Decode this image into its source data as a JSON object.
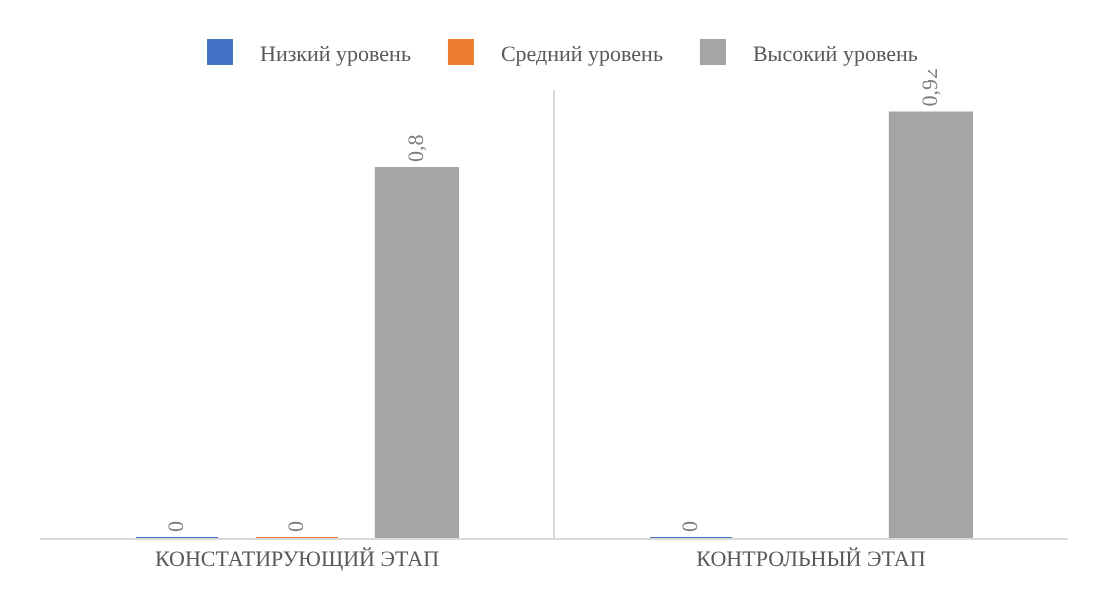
{
  "chart_data": {
    "type": "bar",
    "categories": [
      "КОНСТАТИРУЮЩИЙ ЭТАП",
      "КОНТРОЛЬНЫЙ ЭТАП"
    ],
    "series": [
      {
        "name": "Низкий уровень",
        "color": "#4472c4",
        "values": [
          0,
          0
        ],
        "value_labels": [
          "0",
          "0"
        ]
      },
      {
        "name": "Средний уровень",
        "color": "#ed7d31",
        "values": [
          0,
          null
        ],
        "value_labels": [
          "0",
          null
        ]
      },
      {
        "name": "Высокий уровень",
        "color": "#a5a5a5",
        "values": [
          0.8,
          0.92
        ],
        "value_labels": [
          "0,8",
          "0,92"
        ]
      }
    ],
    "legend": "top"
  }
}
